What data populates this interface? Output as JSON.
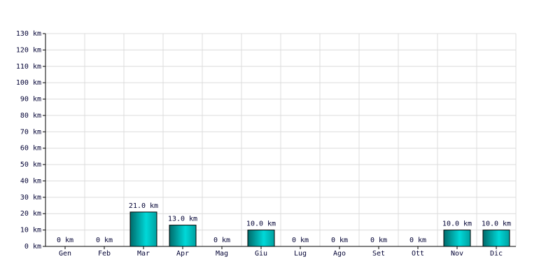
{
  "chart_data": {
    "type": "bar",
    "categories": [
      "Gen",
      "Feb",
      "Mar",
      "Apr",
      "Mag",
      "Giu",
      "Lug",
      "Ago",
      "Set",
      "Ott",
      "Nov",
      "Dic"
    ],
    "values": [
      0,
      0,
      21,
      13,
      0,
      10,
      0,
      0,
      0,
      0,
      10,
      10
    ],
    "value_labels": [
      "0 km",
      "0 km",
      "21.0 km",
      "13.0 km",
      "0 km",
      "10.0 km",
      "0 km",
      "0 km",
      "0 km",
      "0 km",
      "10.0 km",
      "10.0 km"
    ],
    "color": "#00d8d8",
    "ylim": [
      0,
      130
    ],
    "yticks": [
      {
        "value": 0,
        "label": "0 km"
      },
      {
        "value": 10,
        "label": "10 km"
      },
      {
        "value": 20,
        "label": "20 km"
      },
      {
        "value": 30,
        "label": "30 km"
      },
      {
        "value": 40,
        "label": "40 km"
      },
      {
        "value": 50,
        "label": "50 km"
      },
      {
        "value": 60,
        "label": "60 km"
      },
      {
        "value": 70,
        "label": "70 km"
      },
      {
        "value": 80,
        "label": "80 km"
      },
      {
        "value": 90,
        "label": "90 km"
      },
      {
        "value": 100,
        "label": "100 km"
      },
      {
        "value": 110,
        "label": "110 km"
      },
      {
        "value": 120,
        "label": "120 km"
      },
      {
        "value": 130,
        "label": "130 km"
      }
    ],
    "grid": true
  }
}
